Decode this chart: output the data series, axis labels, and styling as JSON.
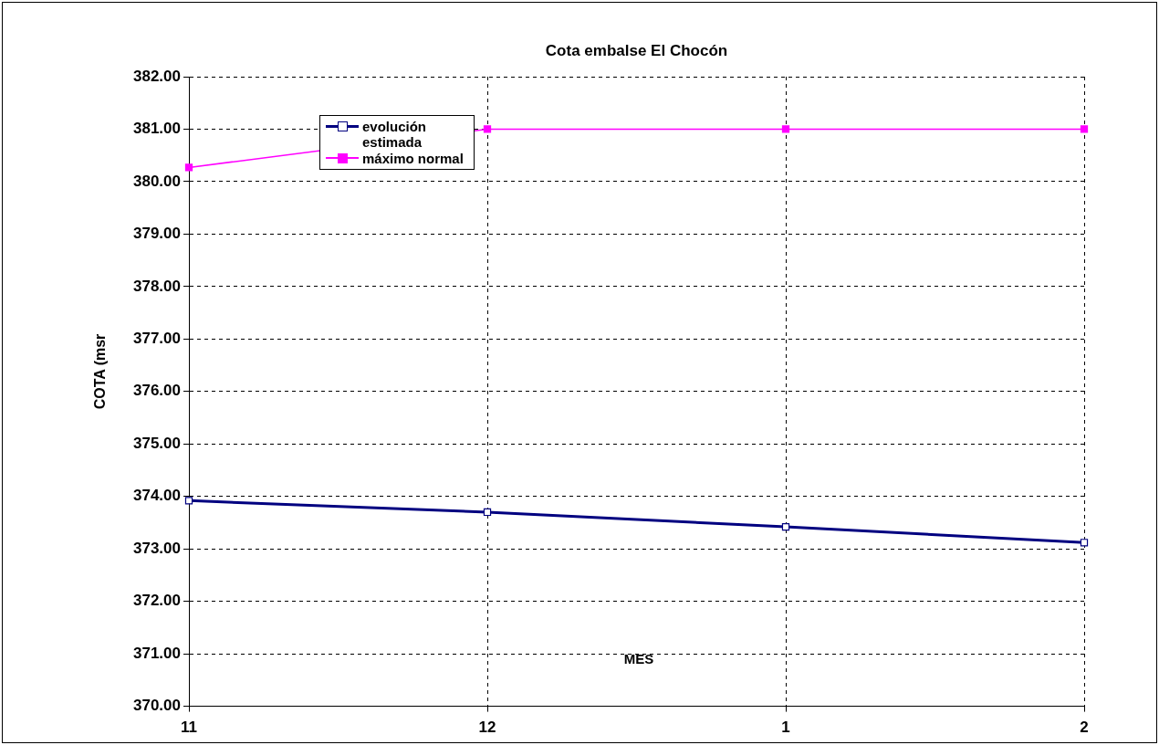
{
  "chart_data": {
    "type": "line",
    "title": "Cota embalse El Chocón",
    "xlabel": "MES",
    "ylabel": "COTA (msr",
    "categories": [
      "11",
      "12",
      "1",
      "2"
    ],
    "series": [
      {
        "name": "evolución estimada",
        "color": "#000080",
        "values": [
          373.92,
          373.7,
          373.42,
          373.12
        ]
      },
      {
        "name": "máximo normal",
        "color": "#ff00ff",
        "values": [
          380.27,
          381,
          381,
          381
        ]
      }
    ],
    "ylim": [
      370,
      382
    ],
    "yticks": [
      {
        "value": 370,
        "label": "370.00"
      },
      {
        "value": 371,
        "label": "371.00"
      },
      {
        "value": 372,
        "label": "372.00"
      },
      {
        "value": 373,
        "label": "373.00"
      },
      {
        "value": 374,
        "label": "374.00"
      },
      {
        "value": 375,
        "label": "375.00"
      },
      {
        "value": 376,
        "label": "376.00"
      },
      {
        "value": 377,
        "label": "377.00"
      },
      {
        "value": 378,
        "label": "378.00"
      },
      {
        "value": 379,
        "label": "379.00"
      },
      {
        "value": 380,
        "label": "380.00"
      },
      {
        "value": 381,
        "label": "381.00"
      },
      {
        "value": 382,
        "label": "382.00"
      }
    ],
    "grid": true,
    "legend": "top left",
    "marker": "square",
    "line_style": "solid"
  }
}
